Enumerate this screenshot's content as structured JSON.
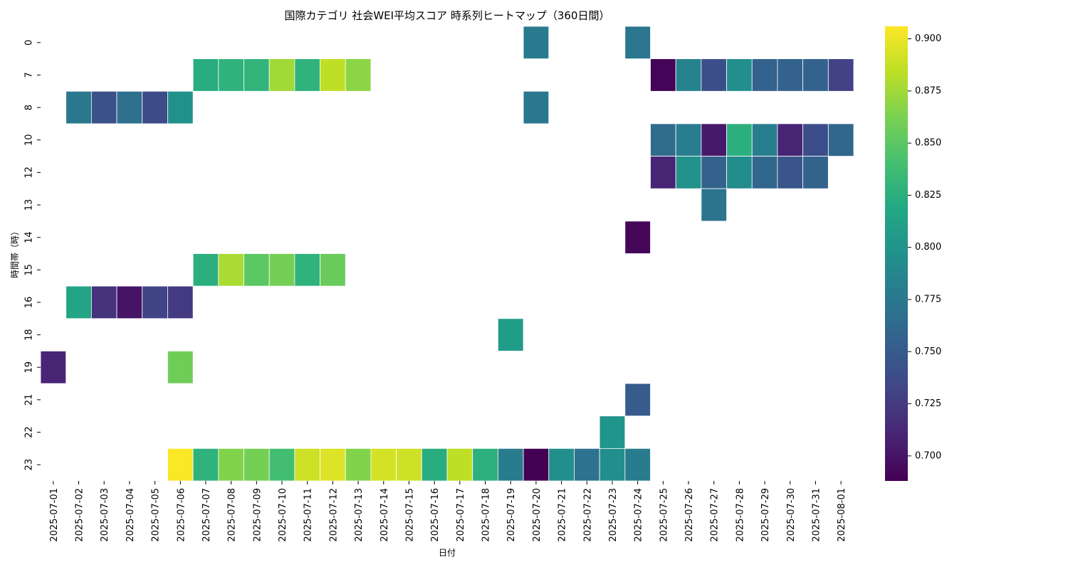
{
  "chart_data": {
    "type": "heatmap",
    "title": "国際カテゴリ 社会WEI平均スコア 時系列ヒートマップ（360日間）",
    "xlabel": "日付",
    "ylabel": "時間帯（時）",
    "x": [
      "2025-07-01",
      "2025-07-02",
      "2025-07-03",
      "2025-07-04",
      "2025-07-05",
      "2025-07-06",
      "2025-07-07",
      "2025-07-08",
      "2025-07-09",
      "2025-07-10",
      "2025-07-11",
      "2025-07-12",
      "2025-07-13",
      "2025-07-14",
      "2025-07-15",
      "2025-07-16",
      "2025-07-17",
      "2025-07-18",
      "2025-07-19",
      "2025-07-20",
      "2025-07-21",
      "2025-07-22",
      "2025-07-23",
      "2025-07-24",
      "2025-07-25",
      "2025-07-26",
      "2025-07-27",
      "2025-07-28",
      "2025-07-29",
      "2025-07-30",
      "2025-07-31",
      "2025-08-01"
    ],
    "y": [
      "0",
      "7",
      "8",
      "10",
      "12",
      "13",
      "14",
      "15",
      "16",
      "18",
      "19",
      "21",
      "22",
      "23"
    ],
    "values": [
      [
        null,
        null,
        null,
        null,
        null,
        null,
        null,
        null,
        null,
        null,
        null,
        null,
        null,
        null,
        null,
        null,
        null,
        null,
        null,
        0.777,
        null,
        null,
        null,
        0.773,
        null,
        null,
        null,
        null,
        null,
        null,
        null,
        null
      ],
      [
        null,
        null,
        null,
        null,
        null,
        null,
        0.823,
        0.828,
        0.83,
        0.875,
        0.828,
        0.885,
        0.868,
        null,
        null,
        null,
        null,
        null,
        null,
        null,
        null,
        null,
        null,
        null,
        0.69,
        0.785,
        0.74,
        0.795,
        0.755,
        0.757,
        0.757,
        0.73
      ],
      [
        null,
        0.775,
        0.742,
        0.768,
        0.738,
        0.797,
        null,
        null,
        null,
        null,
        null,
        null,
        null,
        null,
        null,
        null,
        null,
        null,
        null,
        0.775,
        null,
        null,
        null,
        null,
        null,
        null,
        null,
        null,
        null,
        null,
        null,
        null
      ],
      [
        null,
        null,
        null,
        null,
        null,
        null,
        null,
        null,
        null,
        null,
        null,
        null,
        null,
        null,
        null,
        null,
        null,
        null,
        null,
        null,
        null,
        null,
        null,
        null,
        0.765,
        0.78,
        0.703,
        0.825,
        0.78,
        0.71,
        0.74,
        0.76
      ],
      [
        null,
        null,
        null,
        null,
        null,
        null,
        null,
        null,
        null,
        null,
        null,
        null,
        null,
        null,
        null,
        null,
        null,
        null,
        null,
        null,
        null,
        null,
        null,
        null,
        0.71,
        0.798,
        0.757,
        0.793,
        0.76,
        0.745,
        0.757,
        null
      ],
      [
        null,
        null,
        null,
        null,
        null,
        null,
        null,
        null,
        null,
        null,
        null,
        null,
        null,
        null,
        null,
        null,
        null,
        null,
        null,
        null,
        null,
        null,
        null,
        null,
        null,
        null,
        0.772,
        null,
        null,
        null,
        null,
        null
      ],
      [
        null,
        null,
        null,
        null,
        null,
        null,
        null,
        null,
        null,
        null,
        null,
        null,
        null,
        null,
        null,
        null,
        null,
        null,
        null,
        null,
        null,
        null,
        null,
        0.692,
        null,
        null,
        null,
        null,
        null,
        null,
        null,
        null
      ],
      [
        null,
        null,
        null,
        null,
        null,
        null,
        0.825,
        0.878,
        0.85,
        0.86,
        0.828,
        0.855,
        null,
        null,
        null,
        null,
        null,
        null,
        null,
        null,
        null,
        null,
        null,
        null,
        null,
        null,
        null,
        null,
        null,
        null,
        null,
        null
      ],
      [
        null,
        0.815,
        0.72,
        0.7,
        0.732,
        0.725,
        null,
        null,
        null,
        null,
        null,
        null,
        null,
        null,
        null,
        null,
        null,
        null,
        null,
        null,
        null,
        null,
        null,
        null,
        null,
        null,
        null,
        null,
        null,
        null,
        null,
        null
      ],
      [
        null,
        null,
        null,
        null,
        null,
        null,
        null,
        null,
        null,
        null,
        null,
        null,
        null,
        null,
        null,
        null,
        null,
        null,
        0.807,
        null,
        null,
        null,
        null,
        null,
        null,
        null,
        null,
        null,
        null,
        null,
        null,
        null
      ],
      [
        0.71,
        null,
        null,
        null,
        null,
        0.858,
        null,
        null,
        null,
        null,
        null,
        null,
        null,
        null,
        null,
        null,
        null,
        null,
        null,
        null,
        null,
        null,
        null,
        null,
        null,
        null,
        null,
        null,
        null,
        null,
        null,
        null
      ],
      [
        null,
        null,
        null,
        null,
        null,
        null,
        null,
        null,
        null,
        null,
        null,
        null,
        null,
        null,
        null,
        null,
        null,
        null,
        null,
        null,
        null,
        null,
        null,
        0.75,
        null,
        null,
        null,
        null,
        null,
        null,
        null,
        null
      ],
      [
        null,
        null,
        null,
        null,
        null,
        null,
        null,
        null,
        null,
        null,
        null,
        null,
        null,
        null,
        null,
        null,
        null,
        null,
        null,
        null,
        null,
        null,
        0.8,
        null,
        null,
        null,
        null,
        null,
        null,
        null,
        null,
        null
      ],
      [
        null,
        null,
        null,
        null,
        null,
        0.905,
        0.828,
        0.865,
        0.86,
        0.84,
        0.89,
        0.895,
        0.865,
        0.892,
        0.89,
        0.823,
        0.885,
        0.826,
        0.778,
        0.688,
        0.795,
        0.77,
        0.795,
        0.778,
        null,
        null,
        null,
        null,
        null,
        null,
        null,
        null
      ]
    ],
    "colorbar": {
      "colormap": "viridis",
      "range": [
        0.688,
        0.906
      ],
      "ticks": [
        "0.700",
        "0.725",
        "0.750",
        "0.775",
        "0.800",
        "0.825",
        "0.850",
        "0.875",
        "0.900"
      ]
    }
  }
}
